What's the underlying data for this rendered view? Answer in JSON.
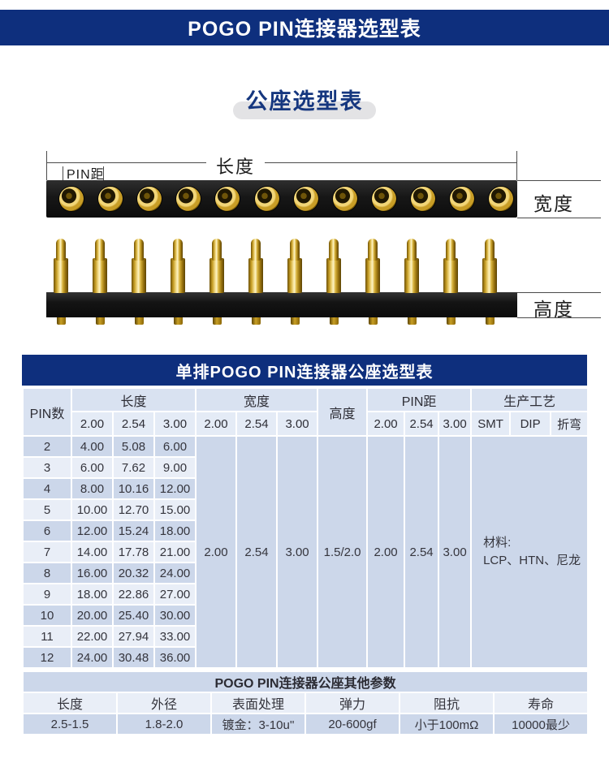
{
  "page": {
    "banner_title": "POGO PIN连接器选型表",
    "section_title": "公座选型表"
  },
  "figures": {
    "top_view": {
      "pin_count": 12,
      "length_label": "长度",
      "pitch_label": "PIN距",
      "width_label": "宽度"
    },
    "side_view": {
      "pin_count": 12,
      "height_label": "高度"
    }
  },
  "main_table": {
    "title": "单排POGO PIN连接器公座选型表",
    "header": {
      "pin_count": "PIN数",
      "length": "长度",
      "width": "宽度",
      "height": "高度",
      "pitch": "PIN距",
      "process": "生产工艺",
      "length_cols": [
        "2.00",
        "2.54",
        "3.00"
      ],
      "width_cols": [
        "2.00",
        "2.54",
        "3.00"
      ],
      "pitch_cols": [
        "2.00",
        "2.54",
        "3.00"
      ],
      "process_cols": [
        "SMT",
        "DIP",
        "折弯"
      ]
    },
    "rows": [
      {
        "pins": "2",
        "len": [
          "4.00",
          "5.08",
          "6.00"
        ]
      },
      {
        "pins": "3",
        "len": [
          "6.00",
          "7.62",
          "9.00"
        ]
      },
      {
        "pins": "4",
        "len": [
          "8.00",
          "10.16",
          "12.00"
        ]
      },
      {
        "pins": "5",
        "len": [
          "10.00",
          "12.70",
          "15.00"
        ]
      },
      {
        "pins": "6",
        "len": [
          "12.00",
          "15.24",
          "18.00"
        ]
      },
      {
        "pins": "7",
        "len": [
          "14.00",
          "17.78",
          "21.00"
        ]
      },
      {
        "pins": "8",
        "len": [
          "16.00",
          "20.32",
          "24.00"
        ]
      },
      {
        "pins": "9",
        "len": [
          "18.00",
          "22.86",
          "27.00"
        ]
      },
      {
        "pins": "10",
        "len": [
          "20.00",
          "25.40",
          "30.00"
        ]
      },
      {
        "pins": "11",
        "len": [
          "22.00",
          "27.94",
          "33.00"
        ]
      },
      {
        "pins": "12",
        "len": [
          "24.00",
          "30.48",
          "36.00"
        ]
      }
    ],
    "merged": {
      "width_values": [
        "2.00",
        "2.54",
        "3.00"
      ],
      "height_value": "1.5/2.0",
      "pitch_values": [
        "2.00",
        "2.54",
        "3.00"
      ],
      "material_line1": "材料:",
      "material_line2": "LCP、HTN、尼龙"
    }
  },
  "other_params": {
    "title": "POGO PIN连接器公座其他参数",
    "headers": [
      "长度",
      "外径",
      "表面处理",
      "弹力",
      "阻抗",
      "寿命"
    ],
    "values": [
      "2.5-1.5",
      "1.8-2.0",
      "镀金：3-10u''",
      "20-600gf",
      "小于100mΩ",
      "10000最少"
    ]
  },
  "colors": {
    "navy": "#0e2f7d",
    "header_cell": "#d9e2f1",
    "subheader_cell": "#e4ebf6",
    "row_dark": "#ccd7ea",
    "row_light": "#e9eef7",
    "params_head": "#c7d4e9",
    "params_value": "#dde6f2",
    "gold": "#d8b33c"
  }
}
